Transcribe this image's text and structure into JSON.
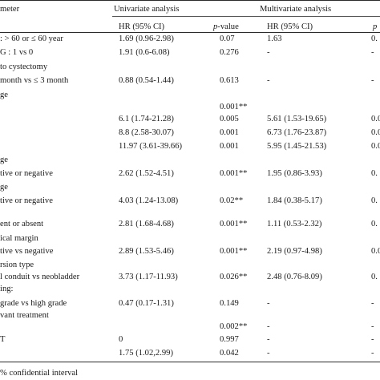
{
  "header": {
    "param": "meter",
    "univariate": "Univariate analysis",
    "multivariate": "Multivariate analysis",
    "hr1": "HR (95% CI)",
    "p1_italic": "p",
    "p1_rest": "-value",
    "hr2": "HR (95% CI)",
    "p2_edge": "p"
  },
  "rows": [
    {
      "label": ": > 60 or  ≤ 60 year",
      "hr1": "1.69  (0.96-2.98)",
      "p1": "0.07",
      "hr2": "1.63",
      "p2": "0."
    },
    {
      "label": "G : 1 vs 0",
      "hr1": "1.91  (0.6-6.08)",
      "p1": "0.276",
      "hr2": "-",
      "p2": "-"
    },
    {
      "label": " to cystectomy",
      "hr1": "",
      "p1": "",
      "hr2": "",
      "p2": ""
    },
    {
      "label": "month vs ≤ 3 month",
      "hr1": "0.88  (0.54-1.44)",
      "p1": "0.613",
      "hr2": "-",
      "p2": "-"
    },
    {
      "label": "ge",
      "hr1": "",
      "p1": "",
      "hr2": "",
      "p2": ""
    },
    {
      "label": "",
      "hr1": "",
      "p1": "0.001**",
      "hr2": "",
      "p2": ""
    },
    {
      "label": "",
      "hr1": "6.1    (1.74-21.28)",
      "p1": "0.005",
      "hr2": "5.61 (1.53-19.65)",
      "p2": "0.0"
    },
    {
      "label": "",
      "hr1": "8.8    (2.58-30.07)",
      "p1": "0.001",
      "hr2": "6.73 (1.76-23.87)",
      "p2": "0.0"
    },
    {
      "label": "",
      "hr1": "11.97 (3.61-39.66)",
      "p1": "0.001",
      "hr2": "5.95 (1.45-21.53)",
      "p2": "0.0"
    },
    {
      "label": "ge",
      "hr1": "",
      "p1": "",
      "hr2": "",
      "p2": ""
    },
    {
      "label": "tive or negative",
      "hr1": "2.62  (1.52-4.51)",
      "p1": "0.001**",
      "hr2": "1.95 (0.86-3.93)",
      "p2": "0."
    },
    {
      "label": "ge",
      "hr1": "",
      "p1": "",
      "hr2": "",
      "p2": ""
    },
    {
      "label": "tive or negative",
      "hr1": "4.03  (1.24-13.08)",
      "p1": "0.02**",
      "hr2": "1.84 (0.38-5.17)",
      "p2": "0."
    },
    {
      "label": "ent or absent",
      "hr1": "2.81  (1.68-4.68)",
      "p1": "0.001**",
      "hr2": "1.11 (0.53-2.32)",
      "p2": "0."
    },
    {
      "label": "ical margin",
      "hr1": "",
      "p1": "",
      "hr2": "",
      "p2": ""
    },
    {
      "label": "tive vs negative",
      "hr1": "2.89  (1.53-5.46)",
      "p1": "0.001**",
      "hr2": "2.19 (0.97-4.98)",
      "p2": "0.0"
    },
    {
      "label": "rsion type",
      "hr1": "",
      "p1": "",
      "hr2": "",
      "p2": ""
    },
    {
      "label": "l conduit vs neobladder",
      "hr1": "3.73  (1.17-11.93)",
      "p1": "0.026**",
      "hr2": "2.48 (0.76-8.09)",
      "p2": "0."
    },
    {
      "label": "ing:",
      "hr1": "",
      "p1": "",
      "hr2": "",
      "p2": ""
    },
    {
      "label": " grade vs high grade",
      "hr1": "0.47  (0.17-1.31)",
      "p1": "0.149",
      "hr2": "-",
      "p2": "-"
    },
    {
      "label": "vant treatment",
      "hr1": "",
      "p1": "",
      "hr2": "",
      "p2": ""
    },
    {
      "label": "",
      "hr1": "",
      "p1": "0.002**",
      "hr2": "-",
      "p2": "-"
    },
    {
      "label": "T",
      "hr1": "0",
      "p1": "0.997",
      "hr2": "-",
      "p2": "-"
    },
    {
      "label": "",
      "hr1": "1.75 (1.02,2.99)",
      "p1": "0.042",
      "hr2": "-",
      "p2": "-"
    }
  ],
  "footnote": "% confidential interval"
}
